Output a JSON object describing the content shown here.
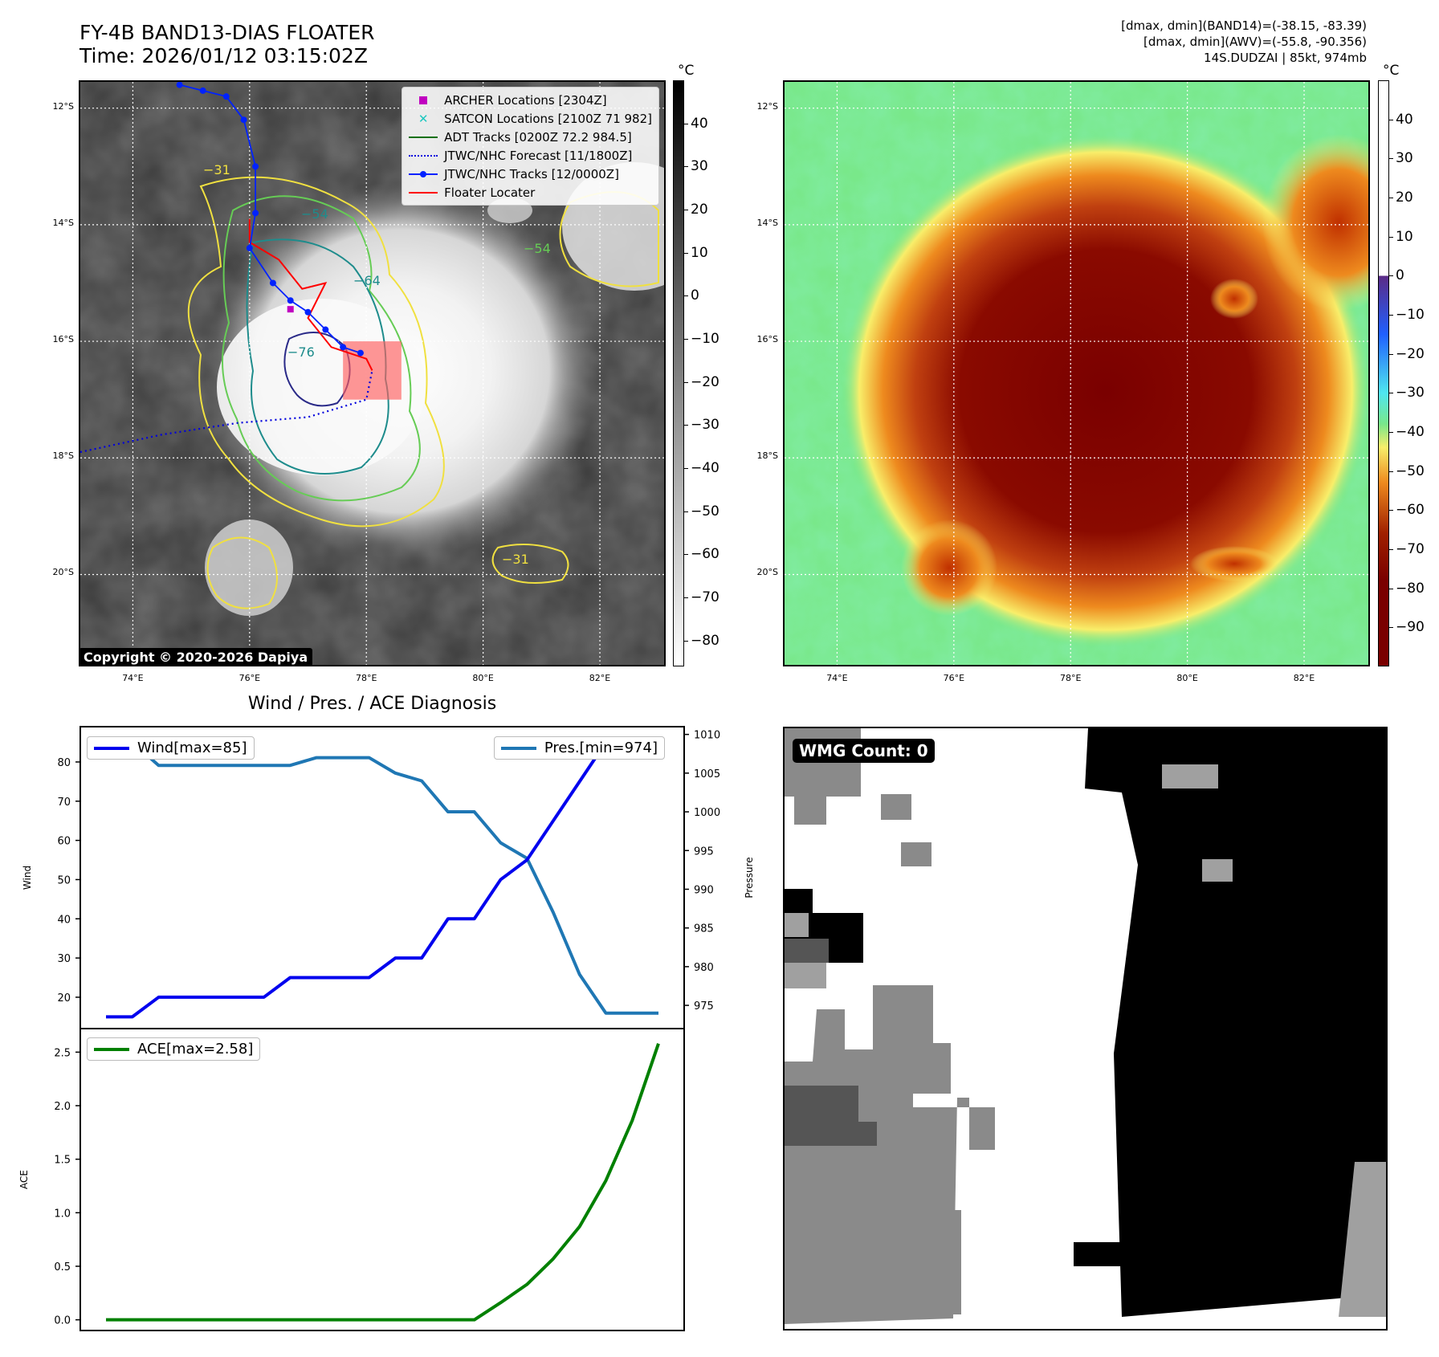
{
  "figure": {
    "title_line1": "FY-4B BAND13-DIAS FLOATER",
    "title_line2": "Time: 2026/01/12 03:15:02Z",
    "info_line1": "[dmax, dmin](BAND14)=(-38.15, -83.39)",
    "info_line2": "[dmax, dmin](AWV)=(-55.8, -90.356)",
    "info_line3": "14S.DUDZAI | 85kt, 974mb",
    "copyright": "Copyright © 2020-2026 Dapiya",
    "diag_title": "Wind / Pres. / ACE Diagnosis",
    "wmg_label": "WMG Count: 0"
  },
  "map_axes": {
    "lat_labels": [
      "12°S",
      "14°S",
      "16°S",
      "18°S",
      "20°S"
    ],
    "lat_values": [
      -12,
      -14,
      -16,
      -18,
      -20
    ],
    "lon_labels": [
      "74°E",
      "76°E",
      "78°E",
      "80°E",
      "82°E"
    ],
    "lon_values": [
      74,
      76,
      78,
      80,
      82
    ],
    "lat_range": [
      -11.55,
      -21.55
    ],
    "lon_range": [
      73.1,
      83.1
    ]
  },
  "colorbar_ir": {
    "unit": "°C",
    "ticks": [
      "40",
      "30",
      "20",
      "10",
      "0",
      "−10",
      "−20",
      "−30",
      "−40",
      "−50",
      "−60",
      "−70",
      "−80"
    ],
    "tick_values": [
      40,
      30,
      20,
      10,
      0,
      -10,
      -20,
      -30,
      -40,
      -50,
      -60,
      -70,
      -80
    ],
    "range": [
      50,
      -86
    ]
  },
  "colorbar_ir_colors": {
    "top": "#000000",
    "bottom": "#ffffff"
  },
  "colorbar_dias": {
    "unit": "°C",
    "ticks": [
      "40",
      "30",
      "20",
      "10",
      "0",
      "−10",
      "−20",
      "−30",
      "−40",
      "−50",
      "−60",
      "−70",
      "−80",
      "−90"
    ],
    "tick_values": [
      40,
      30,
      20,
      10,
      0,
      -10,
      -20,
      -30,
      -40,
      -50,
      -60,
      -70,
      -80,
      -90
    ],
    "range": [
      50,
      -100
    ]
  },
  "dias_colors": {
    "warm_white": "#ffffff",
    "purple": "#5b2a86",
    "blue": "#2060ff",
    "cyan": "#4fe6f0",
    "green": "#79e88a",
    "yellow": "#f8ee6a",
    "orange": "#ee8a1e",
    "red_brown": "#a02000",
    "dark_red": "#7a0000"
  },
  "legend": {
    "archer": "ARCHER Locations [2304Z]",
    "satcon": "SATCON Locations [2100Z 71 982]",
    "adt": "ADT Tracks [0200Z 72.2 984.5]",
    "jtwc_fc": "JTWC/NHC Forecast [11/1800Z]",
    "jtwc_tr": "JTWC/NHC Tracks [12/0000Z]",
    "floater": "Floater Locater"
  },
  "legend_colors": {
    "archer": "#c000c0",
    "satcon": "#20c8c0",
    "adt": "#107010",
    "jtwc_fc": "#0000dd",
    "jtwc_tr": "#0022ff",
    "floater": "#ff0000"
  },
  "contour_labels": [
    "−31",
    "−54",
    "−64",
    "−76"
  ],
  "map_tracks": {
    "jtwc_track": [
      [
        74.8,
        -11.6
      ],
      [
        75.2,
        -11.7
      ],
      [
        75.6,
        -11.8
      ],
      [
        75.9,
        -12.2
      ],
      [
        76.1,
        -13.0
      ],
      [
        76.1,
        -13.8
      ],
      [
        76.0,
        -14.4
      ],
      [
        76.4,
        -15.0
      ],
      [
        76.7,
        -15.3
      ],
      [
        77.0,
        -15.5
      ],
      [
        77.3,
        -15.8
      ],
      [
        77.6,
        -16.1
      ],
      [
        77.9,
        -16.2
      ]
    ],
    "jtwc_forecast": [
      [
        73.1,
        -17.9
      ],
      [
        74.5,
        -17.6
      ],
      [
        75.8,
        -17.4
      ],
      [
        77.0,
        -17.3
      ],
      [
        78.0,
        -17.0
      ],
      [
        78.1,
        -16.5
      ]
    ],
    "floater_path": [
      [
        76.0,
        -13.9
      ],
      [
        76.0,
        -14.3
      ],
      [
        76.5,
        -14.6
      ],
      [
        76.9,
        -15.1
      ],
      [
        77.3,
        -15.0
      ],
      [
        77.0,
        -15.6
      ],
      [
        77.4,
        -16.1
      ],
      [
        78.0,
        -16.3
      ],
      [
        78.1,
        -16.5
      ]
    ],
    "archer": [
      [
        76.7,
        -15.45
      ]
    ],
    "floater_box": {
      "lon": [
        77.6,
        78.6
      ],
      "lat": [
        -16.0,
        -17.0
      ]
    }
  },
  "chart_data": [
    {
      "type": "line",
      "title": "Wind / Pres. / ACE Diagnosis",
      "x": [
        0,
        1,
        2,
        3,
        4,
        5,
        6,
        7,
        8,
        9,
        10,
        11,
        12,
        13,
        14,
        15,
        16,
        17,
        18,
        19,
        20,
        21
      ],
      "series": [
        {
          "name": "Wind[max=85]",
          "axis": "left",
          "color": "#0000ee",
          "values": [
            15,
            15,
            20,
            20,
            20,
            20,
            20,
            25,
            25,
            25,
            25,
            30,
            30,
            40,
            40,
            50,
            55,
            65,
            75,
            85,
            85,
            85
          ]
        },
        {
          "name": "Pres.[min=974]",
          "axis": "right",
          "color": "#1f77b4",
          "values": [
            1009,
            1009,
            1006,
            1006,
            1006,
            1006,
            1006,
            1006,
            1007,
            1007,
            1007,
            1005,
            1004,
            1000,
            1000,
            996,
            994,
            987,
            979,
            974,
            974,
            974
          ]
        }
      ],
      "ylabel": "Wind",
      "ylabel_right": "Pressure",
      "ylim": [
        12,
        89
      ],
      "ylim_right": [
        972,
        1011
      ],
      "yticks": [
        20,
        30,
        40,
        50,
        60,
        70,
        80
      ],
      "yticks_right": [
        975,
        980,
        985,
        990,
        995,
        1000,
        1005,
        1010
      ]
    },
    {
      "type": "line",
      "x": [
        0,
        1,
        2,
        3,
        4,
        5,
        6,
        7,
        8,
        9,
        10,
        11,
        12,
        13,
        14,
        15,
        16,
        17,
        18,
        19,
        20,
        21
      ],
      "series": [
        {
          "name": "ACE[max=2.58]",
          "color": "#008000",
          "values": [
            0,
            0,
            0,
            0,
            0,
            0,
            0,
            0,
            0,
            0,
            0,
            0,
            0,
            0,
            0,
            0.16,
            0.33,
            0.57,
            0.87,
            1.3,
            1.86,
            2.58
          ]
        }
      ],
      "ylabel": "ACE",
      "ylim": [
        -0.1,
        2.72
      ],
      "yticks": [
        0.0,
        0.5,
        1.0,
        1.5,
        2.0,
        2.5
      ],
      "ytick_labels": [
        "0.0",
        "0.5",
        "1.0",
        "1.5",
        "2.0",
        "2.5"
      ]
    }
  ]
}
